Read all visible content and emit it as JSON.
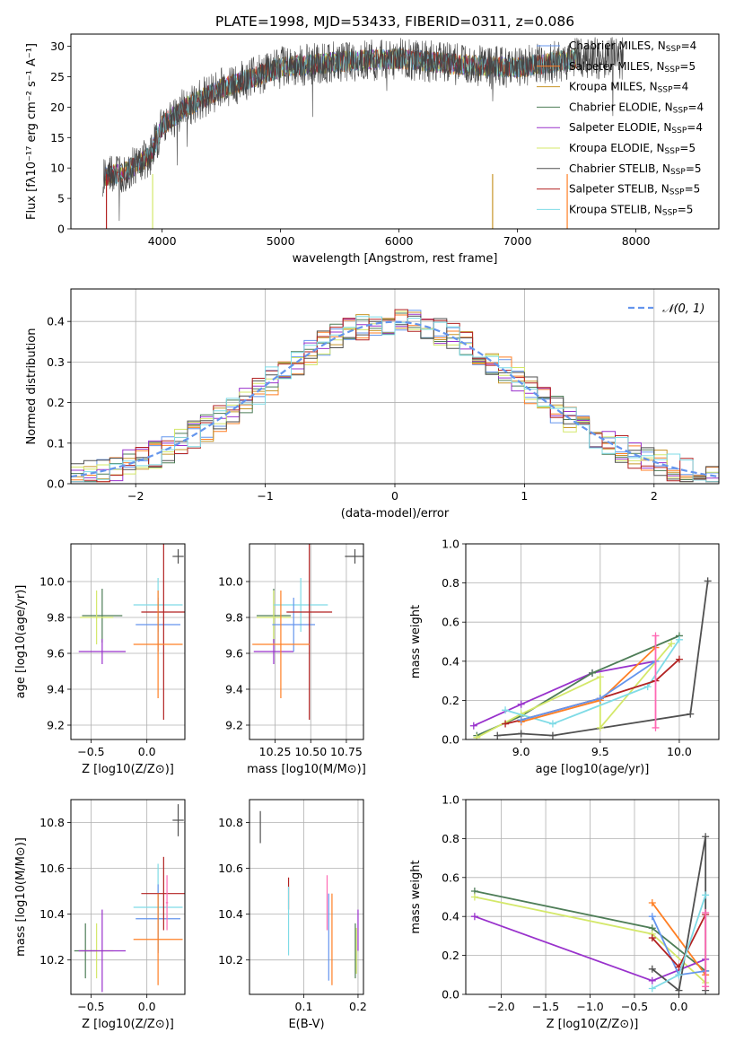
{
  "figure_title": "PLATE=1998, MJD=53433, FIBERID=0311, z=0.086",
  "colors": {
    "chabrier_miles": "#6495ed",
    "salpeter_miles": "#ff7f24",
    "kroupa_miles": "#c8962a",
    "chabrier_elodie": "#4e7d57",
    "salpeter_elodie": "#9932cc",
    "kroupa_elodie": "#d4e86a",
    "chabrier_stelib": "#505050",
    "salpeter_stelib": "#b22222",
    "kroupa_stelib": "#7fdbe6",
    "pink": "#ff69b4",
    "gaussian": "#6495ed",
    "grid": "#b0b0b0"
  },
  "legend_names": [
    "Chabrier MILES, N",
    "Salpeter MILES, N",
    "Kroupa MILES, N",
    "Chabrier ELODIE, N",
    "Salpeter ELODIE, N",
    "Kroupa ELODIE, N",
    "Chabrier STELIB, N",
    "Salpeter STELIB, N",
    "Kroupa STELIB, N"
  ],
  "legend_sub": "SSP",
  "legend_nssp": [
    "=4",
    "=5",
    "=4",
    "=4",
    "=4",
    "=5",
    "=5",
    "=5",
    "=5"
  ],
  "chart_data": [
    {
      "type": "line",
      "title": "PLATE=1998, MJD=53433, FIBERID=0311, z=0.086",
      "xlabel": "wavelength [Angstrom, rest frame]",
      "ylabel": "Flux [fλ10⁻¹⁷ erg cm⁻² s⁻¹ A⁻¹]",
      "xlim": [
        3230,
        8700
      ],
      "ylim": [
        0,
        32
      ],
      "xticks": [
        4000,
        5000,
        6000,
        7000,
        8000
      ],
      "yticks": [
        0,
        5,
        10,
        15,
        20,
        25,
        30
      ],
      "continuum_x": [
        3500,
        3700,
        3900,
        4000,
        4200,
        4500,
        5000,
        5500,
        6000,
        6500,
        7000,
        7500
      ],
      "continuum_y": [
        8.5,
        9.5,
        12,
        17,
        20,
        23,
        26.5,
        27.5,
        28,
        27,
        26.5,
        28
      ],
      "model_range": [
        3520,
        7500
      ],
      "data_range": [
        3500,
        7900
      ],
      "legend_position": "upper right"
    },
    {
      "type": "histogram",
      "xlabel": "(data-model)/error",
      "ylabel": "Normed distribution",
      "xlim": [
        -2.5,
        2.5
      ],
      "ylim": [
        0,
        0.48
      ],
      "xticks": [
        -2,
        -1,
        0,
        1,
        2
      ],
      "yticks": [
        0.0,
        0.1,
        0.2,
        0.3,
        0.4
      ],
      "bin_width": 0.1,
      "gaussian_label": "𝒩(0, 1)",
      "legend_position": "upper right"
    },
    {
      "type": "scatter",
      "xlabel": "Z [log10(Z/Z⊙)]",
      "ylabel": "age  [log10(age/yr)]",
      "xlim": [
        -0.68,
        0.34
      ],
      "ylim": [
        9.12,
        10.21
      ],
      "xticks": [
        -0.5,
        0.0
      ],
      "yticks": [
        9.2,
        9.4,
        9.6,
        9.8,
        10.0
      ],
      "points": [
        {
          "c": "chabrier_elodie",
          "x": -0.4,
          "xerr": 0.18,
          "y": 9.81,
          "yerr": 0.15
        },
        {
          "c": "kroupa_elodie",
          "x": -0.45,
          "xerr": 0.15,
          "y": 9.8,
          "yerr": 0.15
        },
        {
          "c": "salpeter_elodie",
          "x": -0.4,
          "xerr": 0.21,
          "y": 9.61,
          "yerr": 0.07
        },
        {
          "c": "kroupa_stelib",
          "x": 0.1,
          "xerr": 0.22,
          "y": 9.87,
          "yerr": 0.15
        },
        {
          "c": "chabrier_miles",
          "x": 0.1,
          "xerr": 0.2,
          "y": 9.76,
          "yerr": 0.15
        },
        {
          "c": "salpeter_stelib",
          "x": 0.15,
          "xerr": 0.2,
          "y": 9.83,
          "yerr": 0.6
        },
        {
          "c": "salpeter_miles",
          "x": 0.1,
          "xerr": 0.22,
          "y": 9.65,
          "yerr": 0.3
        },
        {
          "c": "chabrier_stelib",
          "x": 0.28,
          "xerr": 0.05,
          "y": 10.14,
          "yerr": 0.04
        }
      ]
    },
    {
      "type": "scatter",
      "xlabel": "mass [log10(M/M⊙)]",
      "ylabel": "",
      "xlim": [
        10.07,
        10.87
      ],
      "ylim": [
        9.12,
        10.21
      ],
      "xticks": [
        10.25,
        10.5,
        10.75
      ],
      "xticklabels": [
        "10.25",
        "10.50",
        "10.75"
      ],
      "yticks": [
        9.2,
        9.4,
        9.6,
        9.8,
        10.0
      ],
      "points": [
        {
          "c": "chabrier_elodie",
          "x": 10.24,
          "xerr": 0.12,
          "y": 9.81,
          "yerr": 0.15
        },
        {
          "c": "kroupa_elodie",
          "x": 10.24,
          "xerr": 0.12,
          "y": 9.8,
          "yerr": 0.15
        },
        {
          "c": "salpeter_elodie",
          "x": 10.24,
          "xerr": 0.14,
          "y": 9.61,
          "yerr": 0.07
        },
        {
          "c": "kroupa_stelib",
          "x": 10.43,
          "xerr": 0.19,
          "y": 9.87,
          "yerr": 0.15
        },
        {
          "c": "chabrier_miles",
          "x": 10.38,
          "xerr": 0.15,
          "y": 9.76,
          "yerr": 0.15
        },
        {
          "c": "salpeter_stelib",
          "x": 10.49,
          "xerr": 0.16,
          "y": 9.83,
          "yerr": 0.6
        },
        {
          "c": "salpeter_miles",
          "x": 10.29,
          "xerr": 0.2,
          "y": 9.65,
          "yerr": 0.3
        },
        {
          "c": "chabrier_stelib",
          "x": 10.81,
          "xerr": 0.07,
          "y": 10.14,
          "yerr": 0.04
        }
      ]
    },
    {
      "type": "line",
      "xlabel": "age  [log10(age/yr)]",
      "ylabel": "mass weight",
      "xlim": [
        8.65,
        10.25
      ],
      "ylim": [
        0,
        1
      ],
      "xticks": [
        9.0,
        9.5,
        10.0
      ],
      "yticks": [
        0.0,
        0.2,
        0.4,
        0.6,
        0.8,
        1.0
      ],
      "series": [
        {
          "c": "chabrier_stelib",
          "x": [
            8.85,
            9.0,
            9.2,
            10.07,
            10.18
          ],
          "y": [
            0.02,
            0.03,
            0.02,
            0.13,
            0.81
          ]
        },
        {
          "c": "salpeter_elodie",
          "x": [
            8.7,
            9.0,
            9.45,
            9.85
          ],
          "y": [
            0.07,
            0.18,
            0.34,
            0.4
          ]
        },
        {
          "c": "chabrier_elodie",
          "x": [
            8.72,
            9.0,
            9.45,
            10.0
          ],
          "y": [
            0.02,
            0.12,
            0.34,
            0.53
          ]
        },
        {
          "c": "kroupa_elodie",
          "x": [
            8.72,
            9.0,
            9.5,
            9.5,
            9.95
          ],
          "y": [
            0.01,
            0.13,
            0.32,
            0.06,
            0.49
          ]
        },
        {
          "c": "kroupa_stelib",
          "x": [
            8.9,
            9.2,
            9.8,
            10.0
          ],
          "y": [
            0.15,
            0.08,
            0.27,
            0.51
          ]
        },
        {
          "c": "salpeter_stelib",
          "x": [
            8.9,
            9.0,
            9.5,
            9.85,
            10.0
          ],
          "y": [
            0.08,
            0.1,
            0.21,
            0.3,
            0.41
          ]
        },
        {
          "c": "salpeter_miles",
          "x": [
            9.0,
            9.5,
            9.85
          ],
          "y": [
            0.09,
            0.2,
            0.47
          ]
        },
        {
          "c": "chabrier_miles",
          "x": [
            9.0,
            9.5,
            9.85
          ],
          "y": [
            0.1,
            0.21,
            0.4
          ]
        },
        {
          "c": "pink",
          "x": [
            9.85,
            9.85
          ],
          "y": [
            0.06,
            0.53
          ]
        }
      ]
    },
    {
      "type": "scatter",
      "xlabel": "Z [log10(Z/Z⊙)]",
      "ylabel": "mass [log10(M/M⊙)]",
      "xlim": [
        -0.68,
        0.34
      ],
      "ylim": [
        10.05,
        10.9
      ],
      "xticks": [
        -0.5,
        0.0
      ],
      "yticks": [
        10.2,
        10.4,
        10.6,
        10.8
      ],
      "points": [
        {
          "c": "chabrier_elodie",
          "x": -0.55,
          "xerr": 0.1,
          "y": 10.24,
          "yerr": 0.12
        },
        {
          "c": "kroupa_elodie",
          "x": -0.45,
          "xerr": 0.15,
          "y": 10.24,
          "yerr": 0.12
        },
        {
          "c": "salpeter_elodie",
          "x": -0.4,
          "xerr": 0.21,
          "y": 10.24,
          "yerr": 0.18
        },
        {
          "c": "kroupa_stelib",
          "x": 0.1,
          "xerr": 0.22,
          "y": 10.43,
          "yerr": 0.19
        },
        {
          "c": "chabrier_miles",
          "x": 0.1,
          "xerr": 0.2,
          "y": 10.38,
          "yerr": 0.15
        },
        {
          "c": "salpeter_stelib",
          "x": 0.15,
          "xerr": 0.2,
          "y": 10.49,
          "yerr": 0.16
        },
        {
          "c": "salpeter_miles",
          "x": 0.1,
          "xerr": 0.22,
          "y": 10.29,
          "yerr": 0.2
        },
        {
          "c": "pink",
          "x": 0.18,
          "xerr": 0.01,
          "y": 10.45,
          "yerr": 0.12
        },
        {
          "c": "chabrier_stelib",
          "x": 0.28,
          "xerr": 0.05,
          "y": 10.81,
          "yerr": 0.07
        }
      ]
    },
    {
      "type": "scatter",
      "xlabel": "E(B-V)",
      "ylabel": "",
      "xlim": [
        0.0,
        0.21
      ],
      "ylim": [
        10.05,
        10.9
      ],
      "xticks": [
        0.1,
        0.2
      ],
      "yticks": [
        10.2,
        10.4,
        10.6,
        10.8
      ],
      "points": [
        {
          "c": "chabrier_stelib",
          "x": 0.02,
          "y": 10.78,
          "yerr": 0.07
        },
        {
          "c": "salpeter_stelib",
          "x": 0.072,
          "y": 10.49,
          "yerr": 0.07
        },
        {
          "c": "kroupa_stelib",
          "x": 0.072,
          "y": 10.37,
          "yerr": 0.15
        },
        {
          "c": "pink",
          "x": 0.143,
          "y": 10.45,
          "yerr": 0.12
        },
        {
          "c": "chabrier_miles",
          "x": 0.146,
          "y": 10.3,
          "yerr": 0.19
        },
        {
          "c": "salpeter_miles",
          "x": 0.152,
          "y": 10.29,
          "yerr": 0.2
        },
        {
          "c": "chabrier_elodie",
          "x": 0.195,
          "y": 10.24,
          "yerr": 0.12
        },
        {
          "c": "kroupa_elodie",
          "x": 0.197,
          "y": 10.24,
          "yerr": 0.1
        },
        {
          "c": "salpeter_elodie",
          "x": 0.2,
          "y": 10.33,
          "yerr": 0.09
        }
      ]
    },
    {
      "type": "line",
      "xlabel": "Z [log10(Z/Z⊙)]",
      "ylabel": "mass weight",
      "xlim": [
        -2.4,
        0.45
      ],
      "ylim": [
        0,
        1
      ],
      "xticks": [
        -2.0,
        -1.5,
        -1.0,
        -0.5,
        0.0
      ],
      "yticks": [
        0.0,
        0.2,
        0.4,
        0.6,
        0.8,
        1.0
      ],
      "series": [
        {
          "c": "chabrier_elodie",
          "x": [
            -2.3,
            -0.3,
            0.3
          ],
          "y": [
            0.53,
            0.34,
            0.12
          ]
        },
        {
          "c": "kroupa_elodie",
          "x": [
            -2.3,
            -0.3,
            0.3
          ],
          "y": [
            0.5,
            0.31,
            0.06
          ]
        },
        {
          "c": "salpeter_elodie",
          "x": [
            -2.3,
            -0.3,
            0.3
          ],
          "y": [
            0.4,
            0.07,
            0.18
          ]
        },
        {
          "c": "salpeter_miles",
          "x": [
            -0.3,
            0.3
          ],
          "y": [
            0.47,
            0.1
          ]
        },
        {
          "c": "chabrier_miles",
          "x": [
            -0.3,
            0.0,
            0.3
          ],
          "y": [
            0.4,
            0.1,
            0.12
          ]
        },
        {
          "c": "chabrier_stelib",
          "x": [
            -0.3,
            0.0,
            0.3,
            0.3
          ],
          "y": [
            0.13,
            0.02,
            0.81,
            0.02
          ]
        },
        {
          "c": "salpeter_stelib",
          "x": [
            -0.3,
            0.0,
            0.3
          ],
          "y": [
            0.29,
            0.14,
            0.41
          ]
        },
        {
          "c": "kroupa_stelib",
          "x": [
            -0.3,
            0.0,
            0.3
          ],
          "y": [
            0.03,
            0.1,
            0.51
          ]
        },
        {
          "c": "pink",
          "x": [
            0.3,
            0.3
          ],
          "y": [
            0.04,
            0.42
          ]
        }
      ]
    }
  ]
}
